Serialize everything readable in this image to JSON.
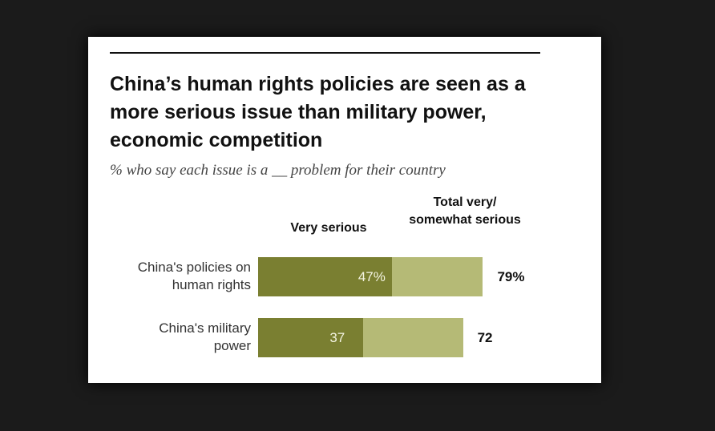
{
  "chart_data": {
    "type": "bar",
    "stacked_overlay": true,
    "title": "China’s human rights policies are seen as a more serious issue than military power, economic competition",
    "subtitle": "% who say each issue is a __ problem for their country",
    "series_headers": [
      "Very serious",
      "Total very/ somewhat serious"
    ],
    "categories": [
      "China's policies on human rights",
      "China's military power"
    ],
    "category_lines": [
      [
        "China's policies on",
        "human rights"
      ],
      [
        "China's military",
        "power"
      ]
    ],
    "series": [
      {
        "name": "Very serious",
        "values": [
          47,
          37
        ],
        "labels": [
          "47%",
          "37"
        ],
        "color": "#7a7f31"
      },
      {
        "name": "Total very/somewhat serious",
        "values": [
          79,
          72
        ],
        "labels": [
          "79%",
          "72"
        ],
        "color": "#b5ba76"
      }
    ],
    "header_lines": [
      "Very serious",
      "Total very/",
      "somewhat serious"
    ]
  }
}
